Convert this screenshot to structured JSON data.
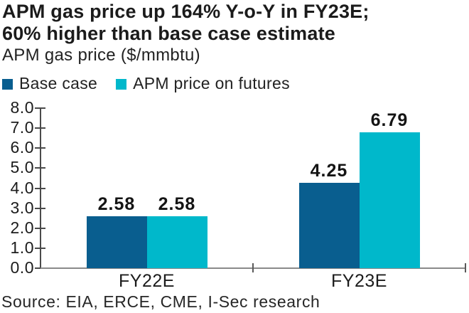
{
  "header": {
    "title_line1": "APM gas price up 164% Y-o-Y in FY23E;",
    "title_line2": "60% higher than base case estimate",
    "subtitle": "APM gas price ($/mmbtu)"
  },
  "footer": {
    "source": "Source: EIA, ERCE, CME, I-Sec research"
  },
  "colors": {
    "base_case": "#095e8f",
    "futures": "#00b8cb",
    "x_axis_line": "#8a8a8a",
    "y_axis_line": "#4a4a4a",
    "text": "#1c1c1c"
  },
  "chart_data": {
    "type": "bar",
    "title": "APM gas price up 164% Y-o-Y in FY23E; 60% higher than base case estimate",
    "subtitle": "APM gas price ($/mmbtu)",
    "categories": [
      "FY22E",
      "FY23E"
    ],
    "series": [
      {
        "name": "Base case",
        "color": "#095e8f",
        "values": [
          2.58,
          4.25
        ]
      },
      {
        "name": "APM price on futures",
        "color": "#00b8cb",
        "values": [
          2.58,
          6.79
        ]
      }
    ],
    "xlabel": "",
    "ylabel": "APM gas price ($/mmbtu)",
    "ylim": [
      0,
      8
    ],
    "ytick_step": 1,
    "ytick_decimals": 1,
    "data_label_decimals": 2,
    "data_labels": true,
    "legend_position": "top",
    "grid": false
  }
}
